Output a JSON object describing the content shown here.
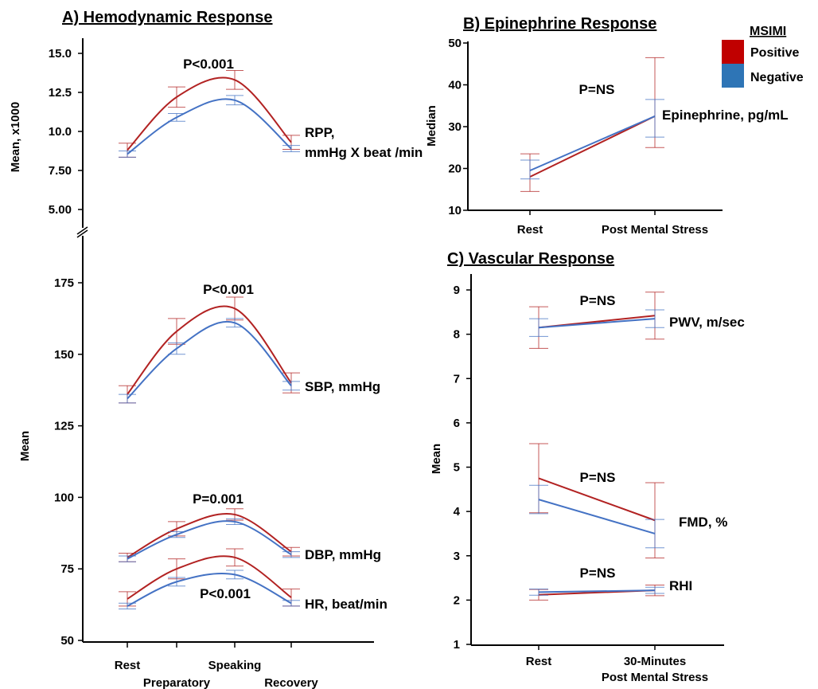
{
  "figure": {
    "legend": {
      "title": "MSIMI",
      "items": [
        {
          "label": "Positive",
          "color": "#c00000"
        },
        {
          "label": "Negative",
          "color": "#2e75b6"
        }
      ]
    },
    "line_colors": {
      "positive": "#b22222",
      "negative": "#4472c4"
    }
  },
  "chart_data": [
    {
      "type": "line",
      "panel": "A",
      "title": "A) Hemodynamic Response",
      "axis_break": true,
      "x": [
        "Rest",
        "Preparatory",
        "Speaking",
        "Recovery"
      ],
      "top": {
        "ylabel": "Mean, x1000",
        "ylim": [
          5,
          15
        ],
        "yticks": [
          "5.00",
          "7.50",
          "10.0",
          "12.5",
          "15.0"
        ],
        "series": [
          {
            "name": "Positive",
            "values": [
              8.8,
              12.2,
              13.3,
              9.3
            ],
            "err": [
              0.45,
              0.65,
              0.6,
              0.45
            ]
          },
          {
            "name": "Negative",
            "values": [
              8.55,
              10.9,
              12.0,
              8.9
            ],
            "err": [
              0.2,
              0.25,
              0.3,
              0.2
            ]
          }
        ],
        "label": [
          "RPP,",
          "mmHg X beat /min"
        ],
        "pvalue": "P<0.001"
      },
      "bottom": {
        "ylabel": "Mean",
        "ylim": [
          50,
          175
        ],
        "yticks": [
          "50",
          "75",
          "100",
          "125",
          "150",
          "175"
        ],
        "groups": [
          {
            "label": "SBP, mmHg",
            "pvalue": "P<0.001",
            "series": [
              {
                "name": "Positive",
                "values": [
                  136,
                  158,
                  166,
                  140
                ],
                "err": [
                  3,
                  4.5,
                  4,
                  3.5
                ]
              },
              {
                "name": "Negative",
                "values": [
                  134.5,
                  152,
                  161,
                  139
                ],
                "err": [
                  1.5,
                  2,
                  1.5,
                  1.5
                ]
              }
            ]
          },
          {
            "label": "DBP, mmHg",
            "pvalue": "P=0.001",
            "series": [
              {
                "name": "Positive",
                "values": [
                  79,
                  89,
                  94,
                  81
                ],
                "err": [
                  1.5,
                  2.5,
                  2,
                  1.5
                ]
              },
              {
                "name": "Negative",
                "values": [
                  78.5,
                  87,
                  91.5,
                  80
                ],
                "err": [
                  1,
                  1,
                  1,
                  1
                ]
              }
            ]
          },
          {
            "label": "HR, beat/min",
            "pvalue": "P<0.001",
            "series": [
              {
                "name": "Positive",
                "values": [
                  64.5,
                  75,
                  79,
                  65
                ],
                "err": [
                  2.5,
                  3.5,
                  3,
                  3
                ]
              },
              {
                "name": "Negative",
                "values": [
                  62,
                  70.5,
                  73,
                  63
                ],
                "err": [
                  1,
                  1.5,
                  1.5,
                  1
                ]
              }
            ]
          }
        ]
      }
    },
    {
      "type": "line",
      "panel": "B",
      "title": "B) Epinephrine Response",
      "ylabel": "Median",
      "ylim": [
        10,
        50
      ],
      "yticks": [
        "10",
        "20",
        "30",
        "40",
        "50"
      ],
      "x": [
        "Rest",
        "Post Mental Stress"
      ],
      "label": "Epinephrine, pg/mL",
      "pvalue": "P=NS",
      "series": [
        {
          "name": "Positive",
          "values": [
            18,
            32.5
          ],
          "err_low": [
            14.5,
            25
          ],
          "err_high": [
            23.5,
            46.5
          ]
        },
        {
          "name": "Negative",
          "values": [
            19.5,
            32.5
          ],
          "err_low": [
            17.5,
            27.5
          ],
          "err_high": [
            22,
            36.5
          ]
        }
      ]
    },
    {
      "type": "line",
      "panel": "C",
      "title": "C) Vascular Response",
      "ylabel": "Mean",
      "ylim": [
        1,
        9
      ],
      "yticks": [
        "1",
        "2",
        "3",
        "4",
        "5",
        "6",
        "7",
        "8",
        "9"
      ],
      "x": [
        "Rest",
        "30-Minutes|Post Mental Stress"
      ],
      "groups": [
        {
          "label": "PWV, m/sec",
          "pvalue": "P=NS",
          "series": [
            {
              "name": "Positive",
              "values": [
                8.15,
                8.42
              ],
              "err": [
                0.47,
                0.53
              ]
            },
            {
              "name": "Negative",
              "values": [
                8.15,
                8.35
              ],
              "err": [
                0.2,
                0.2
              ]
            }
          ]
        },
        {
          "label": "FMD, %",
          "pvalue": "P=NS",
          "series": [
            {
              "name": "Positive",
              "values": [
                4.75,
                3.8
              ],
              "err": [
                0.78,
                0.85
              ]
            },
            {
              "name": "Negative",
              "values": [
                4.27,
                3.5
              ],
              "err": [
                0.32,
                0.32
              ]
            }
          ]
        },
        {
          "label": "RHI",
          "pvalue": "P=NS",
          "series": [
            {
              "name": "Positive",
              "values": [
                2.12,
                2.22
              ],
              "err": [
                0.12,
                0.12
              ]
            },
            {
              "name": "Negative",
              "values": [
                2.18,
                2.22
              ],
              "err": [
                0.07,
                0.07
              ]
            }
          ]
        }
      ]
    }
  ]
}
